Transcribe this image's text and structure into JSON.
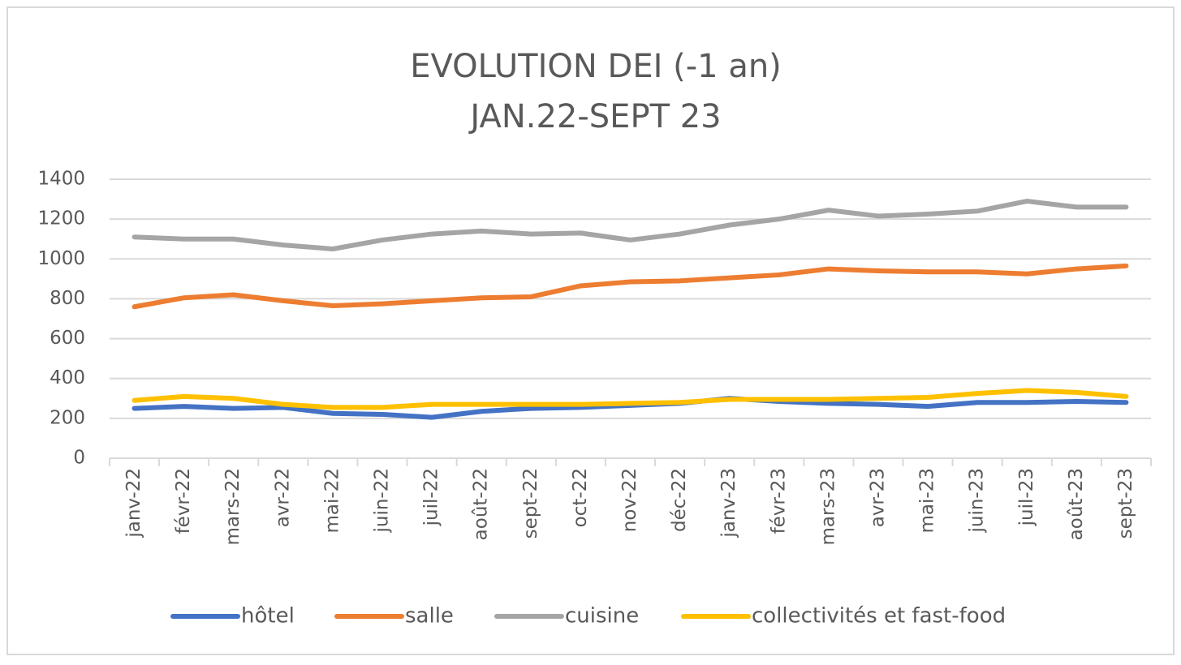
{
  "chart_data": {
    "type": "line",
    "title": "EVOLUTION DEI (-1 an)",
    "subtitle": "JAN.22-SEPT 23",
    "categories": [
      "janv-22",
      "févr-22",
      "mars-22",
      "avr-22",
      "mai-22",
      "juin-22",
      "juil-22",
      "août-22",
      "sept-22",
      "oct-22",
      "nov-22",
      "déc-22",
      "janv-23",
      "févr-23",
      "mars-23",
      "avr-23",
      "mai-23",
      "juin-23",
      "juil-23",
      "août-23",
      "sept-23"
    ],
    "series": [
      {
        "name": "hôtel",
        "color": "#4472c4",
        "values": [
          250,
          260,
          250,
          255,
          225,
          220,
          205,
          235,
          250,
          255,
          265,
          275,
          300,
          285,
          275,
          270,
          260,
          280,
          280,
          285,
          280
        ]
      },
      {
        "name": "salle",
        "color": "#ed7d31",
        "values": [
          760,
          805,
          820,
          790,
          765,
          775,
          790,
          805,
          810,
          865,
          885,
          890,
          905,
          920,
          950,
          940,
          935,
          935,
          925,
          950,
          965
        ]
      },
      {
        "name": "cuisine",
        "color": "#a5a5a5",
        "values": [
          1110,
          1100,
          1100,
          1070,
          1050,
          1095,
          1125,
          1140,
          1125,
          1130,
          1095,
          1125,
          1170,
          1200,
          1245,
          1215,
          1225,
          1240,
          1290,
          1260,
          1260
        ]
      },
      {
        "name": "collectivités et fast-food",
        "color": "#ffc000",
        "values": [
          290,
          310,
          300,
          270,
          255,
          255,
          270,
          270,
          270,
          270,
          275,
          280,
          295,
          295,
          295,
          300,
          305,
          325,
          340,
          330,
          310
        ]
      }
    ],
    "ylim": [
      0,
      1400
    ],
    "yticks": [
      0,
      200,
      400,
      600,
      800,
      1000,
      1200,
      1400
    ],
    "grid": true,
    "legend": "bottom"
  }
}
